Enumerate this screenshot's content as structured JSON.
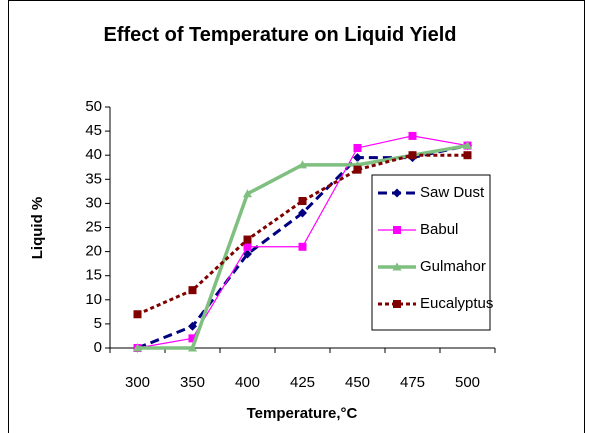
{
  "chart_data": {
    "type": "line",
    "title": "Effect of Temperature on Liquid Yield",
    "x_label": "Temperature,°C",
    "y_label": "Liquid %",
    "categories": [
      "300",
      "350",
      "400",
      "425",
      "450",
      "475",
      "500"
    ],
    "series": [
      {
        "name": "Saw Dust",
        "color": "#000080",
        "values": [
          0,
          4.5,
          19.5,
          28,
          39.5,
          39.5,
          42
        ]
      },
      {
        "name": "Babul",
        "color": "#ff00ff",
        "values": [
          0,
          2,
          21,
          21,
          41.5,
          44,
          42
        ]
      },
      {
        "name": "Gulmahor",
        "color": "#7fbf7f",
        "values": [
          0,
          0,
          32,
          38,
          38,
          40,
          42
        ]
      },
      {
        "name": "Eucalyptus",
        "color": "#800000",
        "values": [
          7,
          12,
          22.5,
          30.5,
          37,
          40,
          40
        ]
      }
    ],
    "ylim": [
      0,
      50
    ],
    "yticks": [
      0,
      5,
      10,
      15,
      20,
      25,
      30,
      35,
      40,
      45,
      50
    ],
    "legend": "right"
  }
}
